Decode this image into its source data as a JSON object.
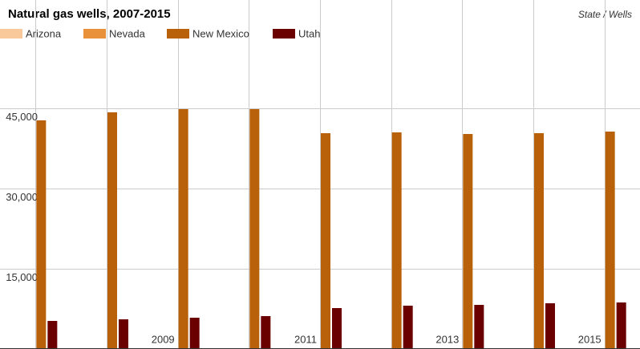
{
  "chart_data": {
    "type": "bar",
    "title": "Natural gas wells, 2007-2015",
    "subtitle": "State / Wells",
    "x": [
      2007,
      2008,
      2009,
      2010,
      2011,
      2012,
      2013,
      2014,
      2015
    ],
    "xlim": [
      2006.5,
      2015.5
    ],
    "xticks": [
      2009,
      2011,
      2013,
      2015
    ],
    "series": [
      {
        "name": "Arizona",
        "color": "#f9c89b",
        "values": [
          0,
          0,
          0,
          0,
          0,
          0,
          0,
          0,
          0
        ]
      },
      {
        "name": "Nevada",
        "color": "#e8913a",
        "values": [
          0,
          0,
          0,
          0,
          0,
          0,
          0,
          0,
          0
        ]
      },
      {
        "name": "New Mexico",
        "color": "#b8610a",
        "values": [
          42750,
          44250,
          44850,
          44850,
          40350,
          40500,
          40200,
          40350,
          40650
        ]
      },
      {
        "name": "Utah",
        "color": "#6b0000",
        "values": [
          5250,
          5550,
          5850,
          6150,
          7650,
          8100,
          8250,
          8550,
          8700
        ]
      }
    ],
    "ylim": [
      0,
      60000
    ],
    "yticks": [
      {
        "value": 15000,
        "label": "15,000"
      },
      {
        "value": 30000,
        "label": "30,000"
      },
      {
        "value": 45000,
        "label": "45,000"
      }
    ],
    "grid": true
  }
}
